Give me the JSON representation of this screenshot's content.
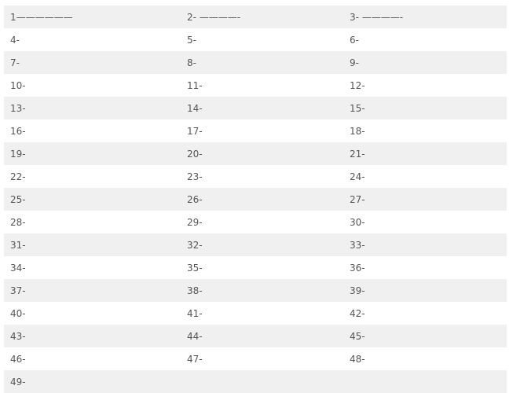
{
  "rows": [
    [
      "1——————",
      "2- ————-",
      "3- ————-"
    ],
    [
      "4-",
      "5-",
      "6-"
    ],
    [
      "7-",
      "8-",
      "9-"
    ],
    [
      "10-",
      "11-",
      "12-"
    ],
    [
      "13-",
      "14-",
      "15-"
    ],
    [
      "16-",
      "17-",
      "18-"
    ],
    [
      "19-",
      "20-",
      "21-"
    ],
    [
      "22-",
      "23-",
      "24-"
    ],
    [
      "25-",
      "26-",
      "27-"
    ],
    [
      "28-",
      "29-",
      "30-"
    ],
    [
      "31-",
      "32-",
      "33-"
    ],
    [
      "34-",
      "35-",
      "36-"
    ],
    [
      "37-",
      "38-",
      "39-"
    ],
    [
      "40-",
      "41-",
      "42-"
    ],
    [
      "43-",
      "44-",
      "45-"
    ],
    [
      "46-",
      "47-",
      "48-"
    ],
    [
      "49-",
      "",
      ""
    ]
  ]
}
